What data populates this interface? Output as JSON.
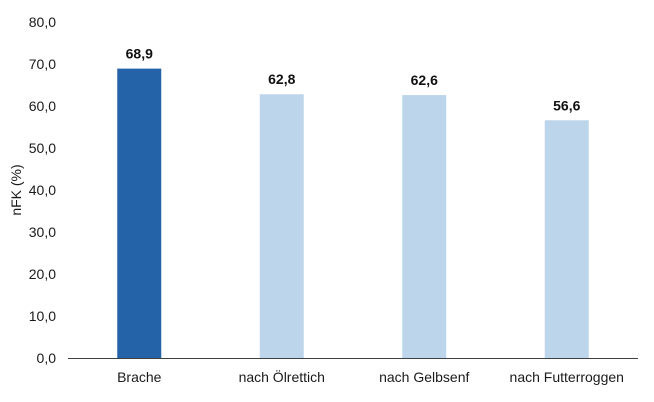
{
  "chart_data": {
    "type": "bar",
    "categories": [
      "Brache",
      "nach Ölrettich",
      "nach Gelbsenf",
      "nach Futterroggen"
    ],
    "values": [
      68.9,
      62.8,
      62.6,
      56.6
    ],
    "value_labels": [
      "68,9",
      "62,8",
      "62,6",
      "56,6"
    ],
    "highlight_index": 0,
    "ylabel": "nFK (%)",
    "xlabel": "",
    "ylim": [
      0,
      80
    ],
    "y_ticks": [
      0,
      10,
      20,
      30,
      40,
      50,
      60,
      70,
      80
    ],
    "y_tick_labels": [
      "0,0",
      "10,0",
      "20,0",
      "30,0",
      "40,0",
      "50,0",
      "60,0",
      "70,0",
      "80,0"
    ],
    "grid": false,
    "legend": "none",
    "colors": {
      "highlight": "#2463a8",
      "bar": "#bcd5ea",
      "axis": "#404040"
    }
  }
}
